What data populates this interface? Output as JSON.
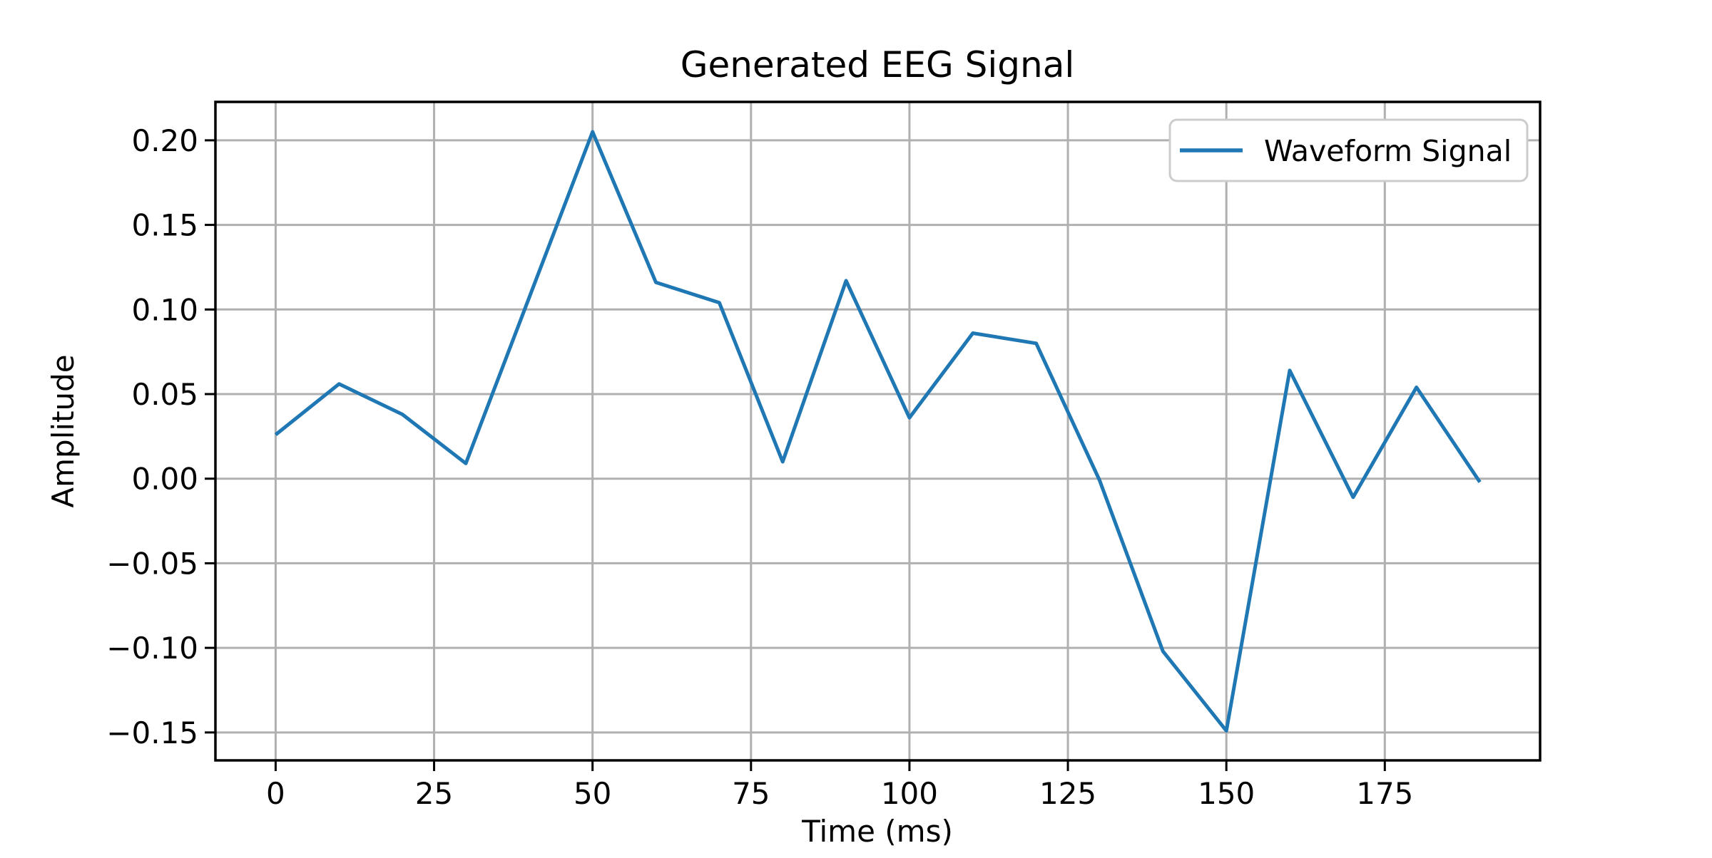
{
  "figure": {
    "background": "#ffffff"
  },
  "chart_data": {
    "type": "line",
    "title": "Generated EEG Signal",
    "xlabel": "Time (ms)",
    "ylabel": "Amplitude",
    "grid": true,
    "legend_position": "upper right",
    "xlim": [
      -9.5,
      199.5
    ],
    "ylim": [
      -0.1665,
      0.2227
    ],
    "xticks": [
      0,
      25,
      50,
      75,
      100,
      125,
      150,
      175
    ],
    "yticks": [
      -0.15,
      -0.1,
      -0.05,
      0.0,
      0.05,
      0.1,
      0.15,
      0.2
    ],
    "x": [
      0,
      10,
      20,
      30,
      40,
      50,
      60,
      70,
      80,
      90,
      100,
      110,
      120,
      130,
      140,
      150,
      160,
      170,
      180,
      190
    ],
    "series": [
      {
        "name": "Waveform Signal",
        "color": "#1f77b4",
        "values": [
          0.026,
          0.056,
          0.038,
          0.009,
          0.107,
          0.205,
          0.116,
          0.104,
          0.01,
          0.117,
          0.036,
          0.086,
          0.08,
          -0.001,
          -0.102,
          -0.149,
          0.064,
          -0.011,
          0.054,
          -0.002
        ]
      }
    ],
    "colors": {
      "line": "#1f77b4",
      "grid": "#b0b0b0",
      "spine": "#000000",
      "text": "#000000",
      "legend_border": "#cccccc",
      "background": "#ffffff"
    }
  }
}
